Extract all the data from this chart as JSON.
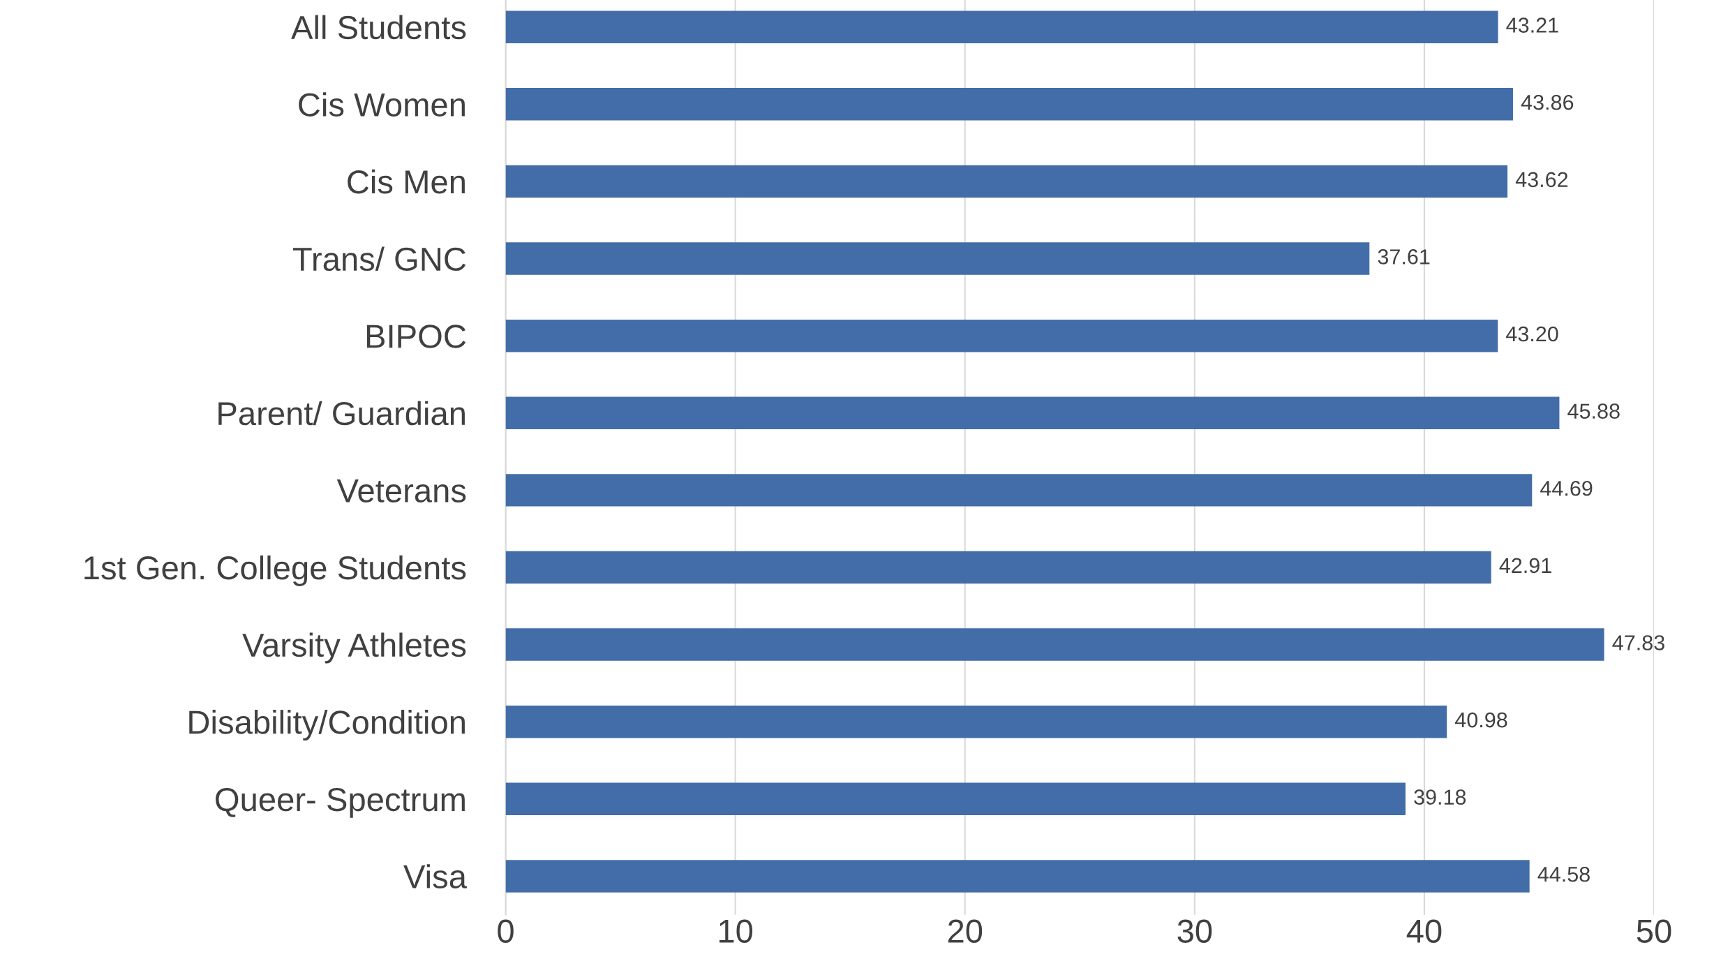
{
  "chart_data": {
    "type": "bar",
    "orientation": "horizontal",
    "categories": [
      "All Students",
      "Cis Women",
      "Cis Men",
      "Trans/ GNC",
      "BIPOC",
      "Parent/ Guardian",
      "Veterans",
      "1st Gen. College Students",
      "Varsity Athletes",
      "Disability/Condition",
      "Queer- Spectrum",
      "Visa"
    ],
    "values": [
      43.21,
      43.86,
      43.62,
      37.61,
      43.2,
      45.88,
      44.69,
      42.91,
      47.83,
      40.98,
      39.18,
      44.58
    ],
    "value_labels": [
      "43.21",
      "43.86",
      "43.62",
      "37.61",
      "43.20",
      "45.88",
      "44.69",
      "42.91",
      "47.83",
      "40.98",
      "39.18",
      "44.58"
    ],
    "color": "#426da9",
    "xlim": [
      0,
      50
    ],
    "xticks": [
      0,
      10,
      20,
      30,
      40,
      50
    ],
    "grid": "x"
  }
}
